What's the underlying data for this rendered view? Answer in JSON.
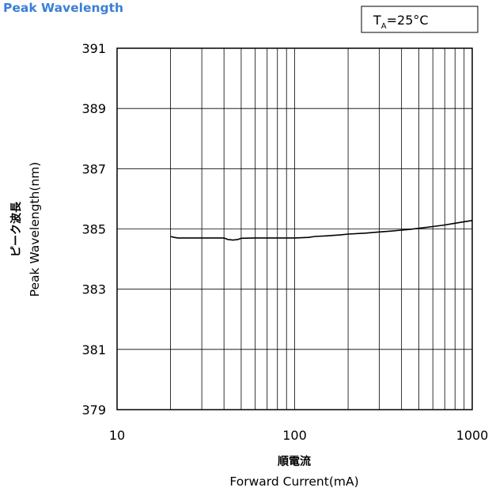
{
  "chart_data": {
    "type": "line",
    "title": "Peak Wavelength",
    "condition": {
      "prefix": "T",
      "subscript": "A",
      "suffix": "=25°C"
    },
    "xlabel_jp": "順電流",
    "xlabel": "Forward Current(mA)",
    "ylabel_jp": "ピーク波長",
    "ylabel": "Peak Wavelength(nm)",
    "x_scale": "log",
    "xlim": [
      10,
      1000
    ],
    "ylim": [
      379,
      391
    ],
    "x_ticks": [
      {
        "value": 10,
        "label": "10"
      },
      {
        "value": 100,
        "label": "100"
      },
      {
        "value": 1000,
        "label": "1000"
      }
    ],
    "y_ticks": [
      {
        "value": 379,
        "label": "379"
      },
      {
        "value": 381,
        "label": "381"
      },
      {
        "value": 383,
        "label": "383"
      },
      {
        "value": 385,
        "label": "385"
      },
      {
        "value": 387,
        "label": "387"
      },
      {
        "value": 389,
        "label": "389"
      },
      {
        "value": 391,
        "label": "391"
      }
    ],
    "grid": true,
    "series": [
      {
        "x": [
          20,
          21,
          22,
          25,
          30,
          35,
          40,
          42,
          45,
          48,
          50,
          60,
          70,
          80,
          90,
          100,
          120,
          130,
          150,
          180,
          200,
          250,
          300,
          350,
          400,
          450,
          500,
          550,
          600,
          700,
          800,
          900,
          1000
        ],
        "y": [
          384.75,
          384.72,
          384.7,
          384.7,
          384.7,
          384.7,
          384.7,
          384.65,
          384.63,
          384.65,
          384.69,
          384.7,
          384.7,
          384.7,
          384.7,
          384.7,
          384.72,
          384.75,
          384.77,
          384.8,
          384.83,
          384.86,
          384.9,
          384.93,
          384.96,
          384.99,
          385.02,
          385.05,
          385.08,
          385.13,
          385.19,
          385.24,
          385.28
        ]
      }
    ]
  }
}
